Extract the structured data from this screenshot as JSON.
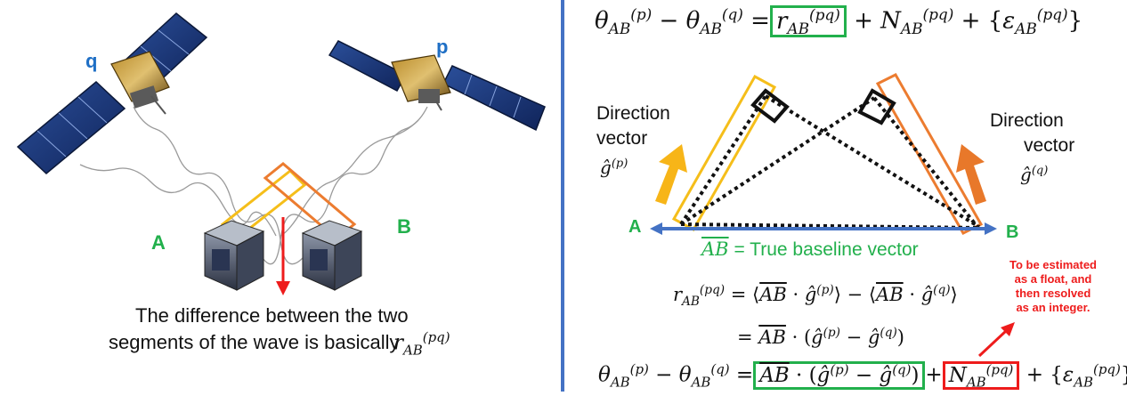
{
  "left_panel": {
    "sat_q_label": "q",
    "sat_p_label": "p",
    "cube_a_label": "A",
    "cube_b_label": "B",
    "caption_line1": "The difference between the two",
    "caption_line2": "segments of the wave is basically"
  },
  "right_panel": {
    "eq_top": {
      "lhs": "θ",
      "r_term": "r",
      "n_term": "N",
      "eps_term": "ε",
      "sub_ab": "AB",
      "sup_p": "(p)",
      "sup_q": "(q)",
      "sup_pq": "(pq)"
    },
    "direction_left_line1": "Direction",
    "direction_left_line2": "vector",
    "direction_left_vec": "ĝ(p)",
    "direction_right_line1": "Direction",
    "direction_right_line2": "vector",
    "direction_right_vec": "ĝ(q)",
    "point_a": "A",
    "point_b": "B",
    "baseline_vec": "AB",
    "baseline_text": " = True baseline vector",
    "red_note_line1": "To be estimated",
    "red_note_line2": "as a float, and",
    "red_note_line3": "then resolved",
    "red_note_line4": "as an integer."
  },
  "colors": {
    "green": "#22b04c",
    "red": "#ee1c1c",
    "blue_divider": "#4472c4",
    "blue_label": "#1f6fc5",
    "yellow": "#f5be1a",
    "orange": "#ec7c30",
    "arrow_yellow": "#f7b518",
    "arrow_orange": "#e8782a"
  }
}
